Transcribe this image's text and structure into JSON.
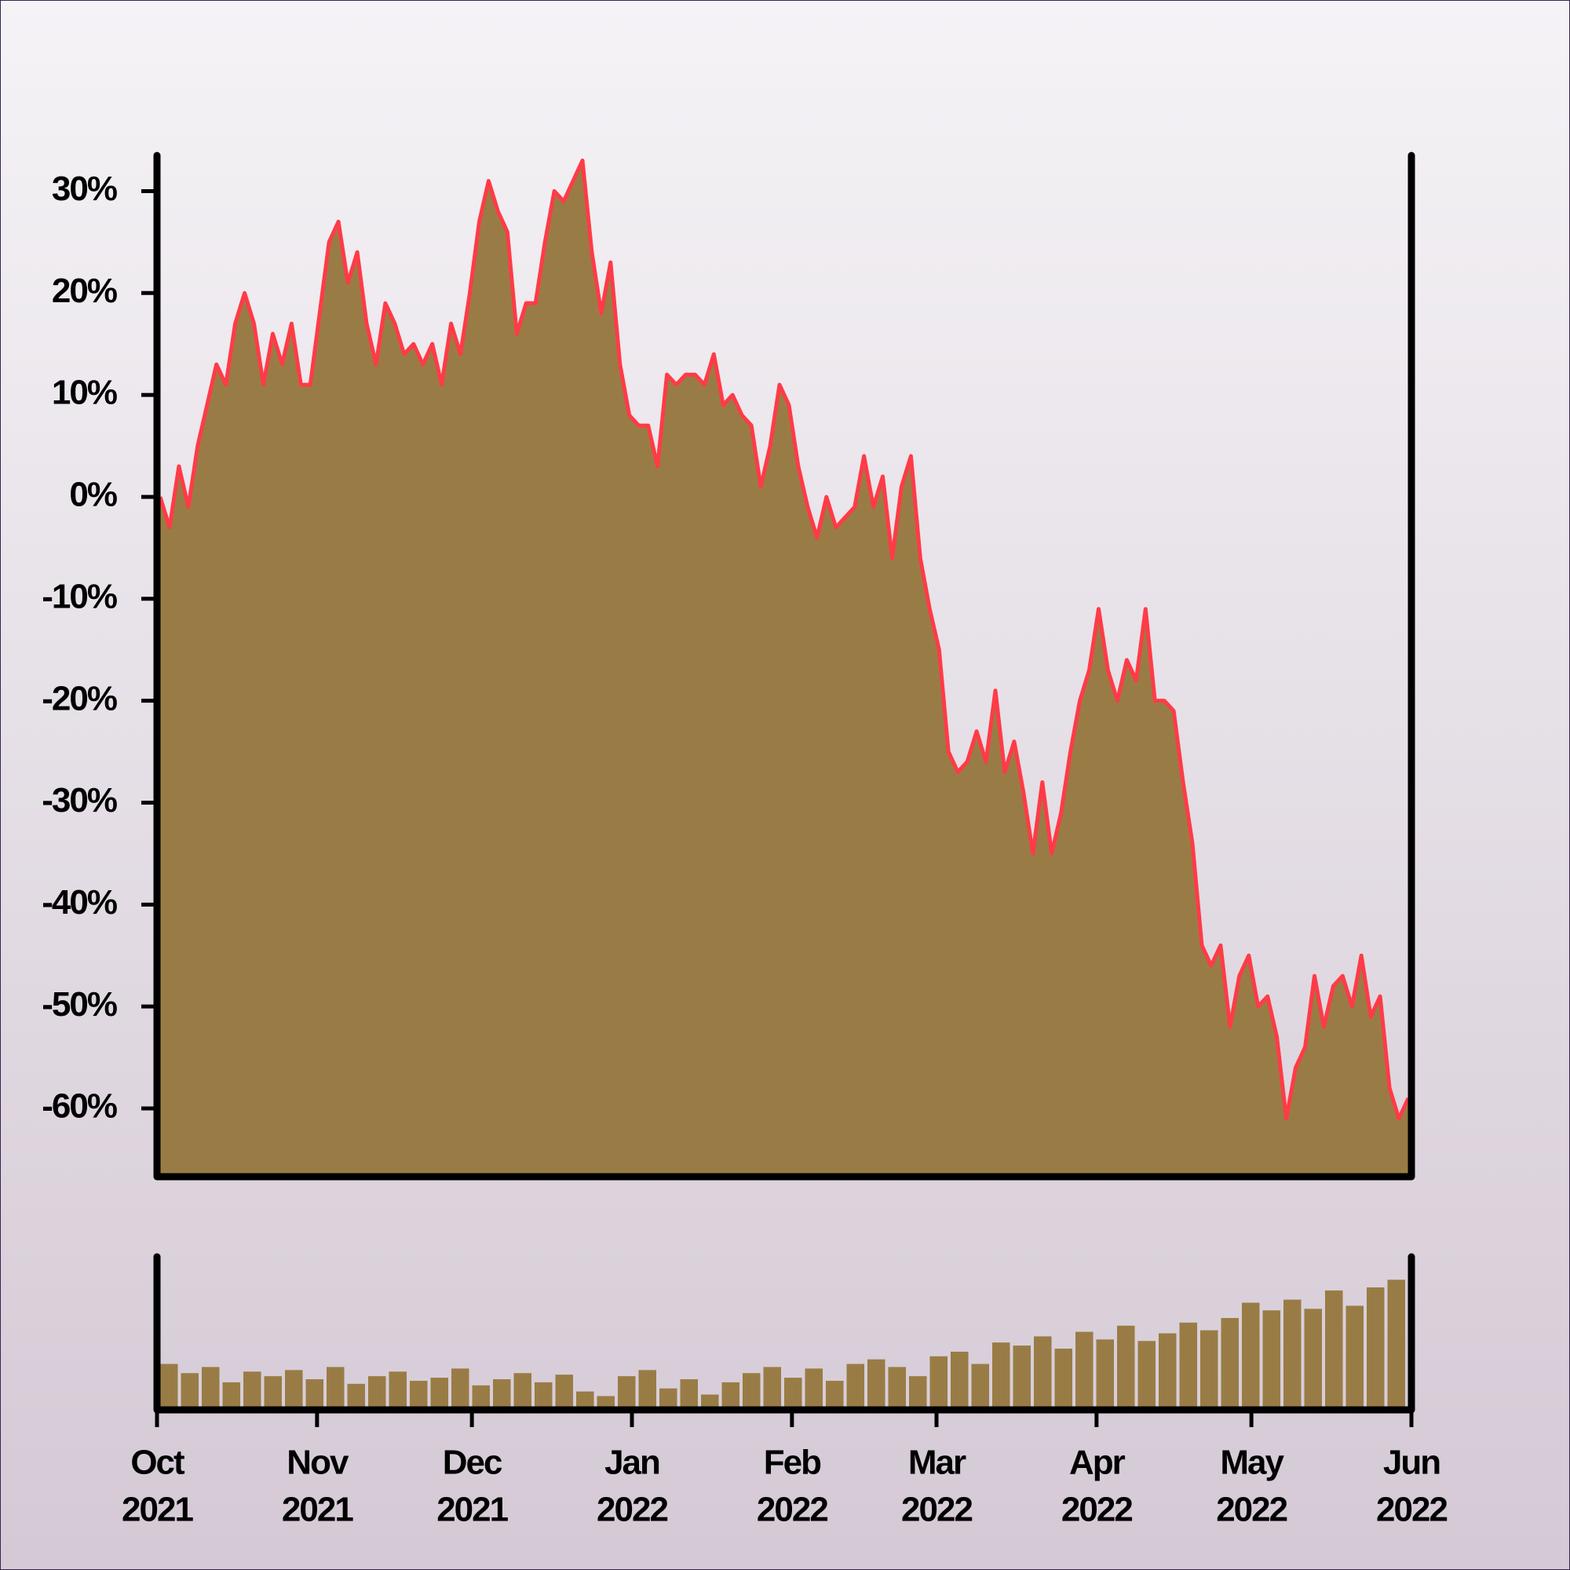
{
  "chart_data": [
    {
      "type": "area",
      "values": [
        0,
        -3,
        3,
        -1,
        5,
        9,
        13,
        11,
        17,
        20,
        17,
        11,
        16,
        13,
        17,
        11,
        11,
        18,
        25,
        27,
        21,
        24,
        17,
        13,
        19,
        17,
        14,
        15,
        13,
        15,
        11,
        17,
        14,
        20,
        27,
        31,
        28,
        26,
        16,
        19,
        19,
        25,
        30,
        29,
        31,
        33,
        24,
        18,
        23,
        13,
        8,
        7,
        7,
        3,
        12,
        11,
        12,
        12,
        11,
        14,
        9,
        10,
        8,
        7,
        1,
        5,
        11,
        9,
        3,
        -1,
        -4,
        0,
        -3,
        -2,
        -1,
        4,
        -1,
        2,
        -6,
        1,
        4,
        -6,
        -11,
        -15,
        -25,
        -27,
        -26,
        -23,
        -26,
        -19,
        -27,
        -24,
        -29,
        -35,
        -28,
        -35,
        -31,
        -25,
        -20,
        -17,
        -11,
        -17,
        -20,
        -16,
        -18,
        -11,
        -20,
        -20,
        -21,
        -28,
        -34,
        -44,
        -46,
        -44,
        -52,
        -47,
        -45,
        -50,
        -49,
        -53,
        -61,
        -56,
        -54,
        -47,
        -52,
        -48,
        -47,
        -50,
        -45,
        -51,
        -49,
        -58,
        -61,
        -59
      ],
      "color": "#997c45",
      "line_color": "#ff3b47",
      "ylim": [
        -66.7,
        33.5
      ],
      "yticks": [
        {
          "value": -60,
          "label": "-60%"
        },
        {
          "value": -50,
          "label": "-50%"
        },
        {
          "value": -40,
          "label": "-40%"
        },
        {
          "value": -30,
          "label": "-30%"
        },
        {
          "value": -20,
          "label": "-20%"
        },
        {
          "value": -10,
          "label": "-10%"
        },
        {
          "value": 0,
          "label": "0%"
        },
        {
          "value": 10,
          "label": "10%"
        },
        {
          "value": 20,
          "label": "20%"
        },
        {
          "value": 30,
          "label": "30%"
        }
      ]
    },
    {
      "type": "bar",
      "values": [
        30,
        24,
        28,
        18,
        25,
        22,
        26,
        20,
        28,
        17,
        22,
        25,
        19,
        21,
        27,
        16,
        20,
        24,
        18,
        23,
        12,
        9,
        22,
        26,
        14,
        20,
        10,
        18,
        24,
        28,
        21,
        27,
        19,
        30,
        33,
        28,
        22,
        35,
        38,
        30,
        44,
        42,
        48,
        40,
        51,
        46,
        55,
        45,
        50,
        57,
        52,
        60,
        70,
        65,
        72,
        66,
        78,
        68,
        80,
        85
      ],
      "color": "#997c45",
      "ylim": [
        0,
        100
      ],
      "xlim": [
        "2021-10",
        "2022-06"
      ],
      "xticks": [
        {
          "value": "2021-10",
          "label": [
            "Oct",
            "2021"
          ]
        },
        {
          "value": "2021-11",
          "label": [
            "Nov",
            "2021"
          ]
        },
        {
          "value": "2021-12",
          "label": [
            "Dec",
            "2021"
          ]
        },
        {
          "value": "2022-01",
          "label": [
            "Jan",
            "2022"
          ]
        },
        {
          "value": "2022-02",
          "label": [
            "Feb",
            "2022"
          ]
        },
        {
          "value": "2022-03",
          "label": [
            "Mar",
            "2022"
          ]
        },
        {
          "value": "2022-04",
          "label": [
            "Apr",
            "2022"
          ]
        },
        {
          "value": "2022-05",
          "label": [
            "May",
            "2022"
          ]
        },
        {
          "value": "2022-06",
          "label": [
            "Jun",
            "2022"
          ]
        }
      ]
    }
  ]
}
